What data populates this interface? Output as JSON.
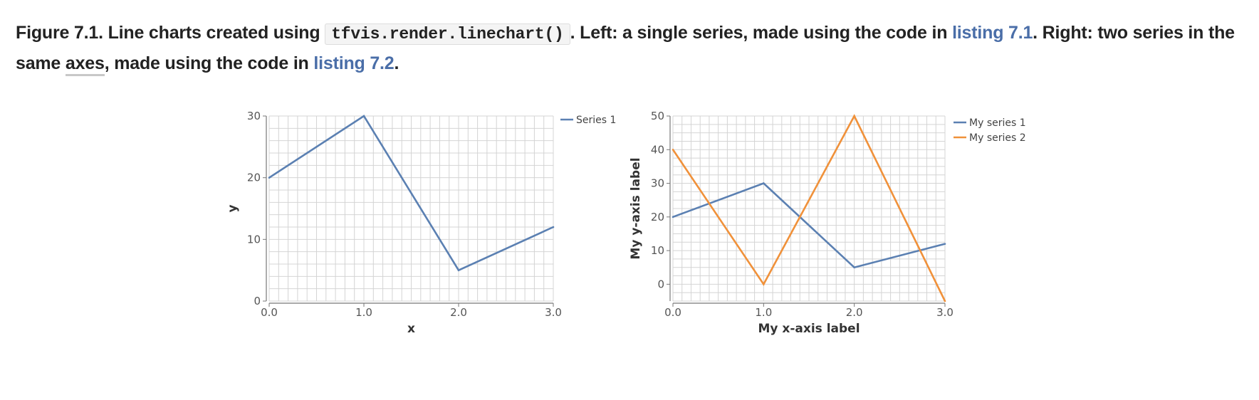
{
  "caption": {
    "prefix": "Figure 7.1. Line charts created using",
    "code": "tfvis.render.linechart()",
    "middle": ". Left: a single series, made using the code in",
    "link1": "listing 7.1",
    "after_link1": ". Right: two series in the same",
    "axes_word": "axes",
    "after_axes": ", made using the code in",
    "link2": "listing 7.2",
    "end": "."
  },
  "colors": {
    "series_blue": "#5b80b2",
    "series_orange": "#f0913a",
    "grid": "#d4d4d4",
    "link": "#4a6ea8"
  },
  "chart_data": [
    {
      "type": "line",
      "title": "",
      "xlabel": "x",
      "ylabel": "y",
      "xlim": [
        0,
        3
      ],
      "ylim": [
        0,
        30
      ],
      "x_ticks": [
        "0.0",
        "1.0",
        "2.0",
        "3.0"
      ],
      "y_ticks": [
        "0",
        "10",
        "20",
        "30"
      ],
      "grid": true,
      "legend_position": "right",
      "series": [
        {
          "name": "Series 1",
          "x": [
            0,
            1,
            2,
            3
          ],
          "y": [
            20,
            30,
            5,
            12
          ]
        }
      ]
    },
    {
      "type": "line",
      "title": "",
      "xlabel": "My x-axis label",
      "ylabel": "My y-axis label",
      "xlim": [
        0,
        3
      ],
      "ylim": [
        -5,
        50
      ],
      "x_ticks": [
        "0.0",
        "1.0",
        "2.0",
        "3.0"
      ],
      "y_ticks": [
        "0",
        "10",
        "20",
        "30",
        "40",
        "50"
      ],
      "grid": true,
      "legend_position": "right",
      "series": [
        {
          "name": "My series 1",
          "x": [
            0,
            1,
            2,
            3
          ],
          "y": [
            20,
            30,
            5,
            12
          ]
        },
        {
          "name": "My series 2",
          "x": [
            0,
            1,
            2,
            3
          ],
          "y": [
            40,
            0,
            50,
            -5
          ]
        }
      ]
    }
  ]
}
